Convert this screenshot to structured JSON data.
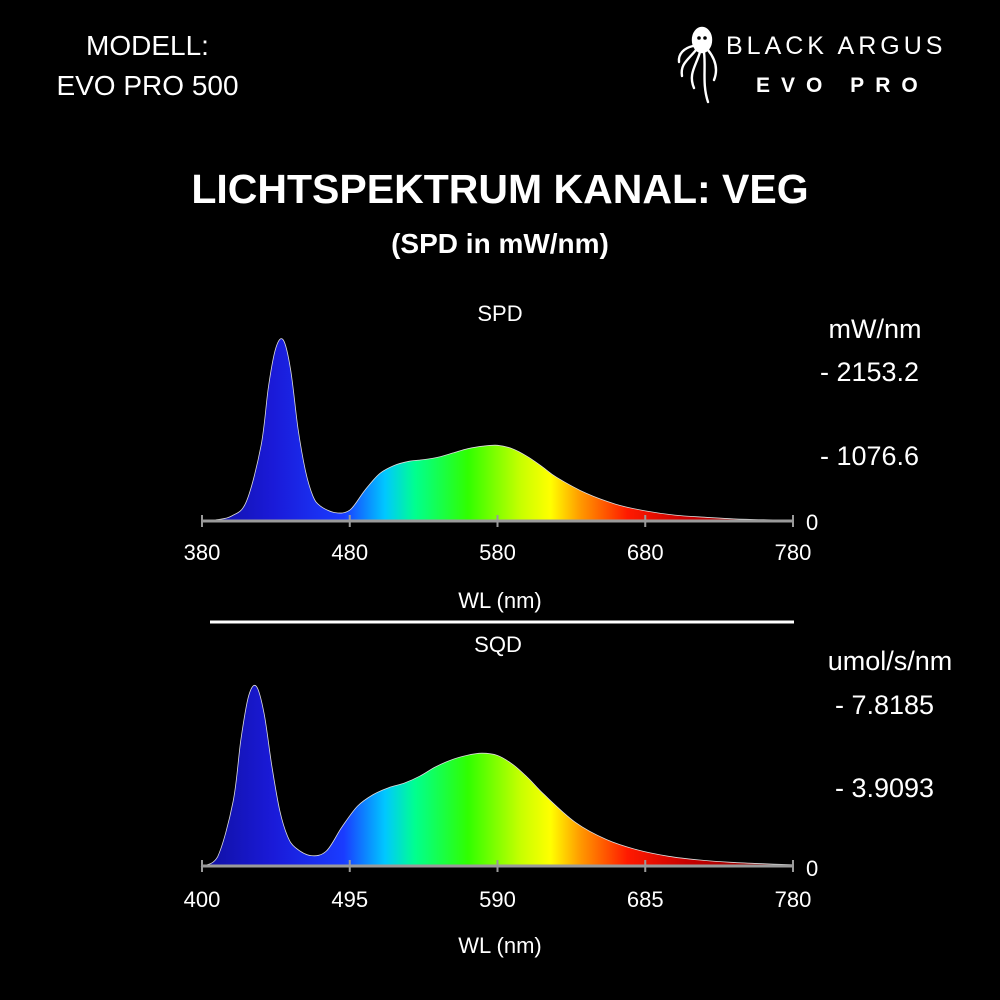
{
  "model": {
    "label": "MODELL:",
    "value": "EVO PRO 500"
  },
  "brand": {
    "name": "BLACK ARGUS",
    "sub": "EVO PRO",
    "logo_icon": "octopus-icon"
  },
  "title": "LICHTSPEKTRUM KANAL: VEG",
  "subtitle": "(SPD in mW/nm)",
  "chart_data": [
    {
      "type": "area",
      "title": "SPD",
      "xlabel": "WL (nm)",
      "ylabel": "mW/nm",
      "xlim": [
        380,
        780
      ],
      "ylim": [
        0,
        2153.2
      ],
      "xticks": [
        "380",
        "480",
        "580",
        "680",
        "780"
      ],
      "yticks": [
        "0",
        "- 1076.6",
        "- 2153.2"
      ],
      "x": [
        380,
        390,
        400,
        410,
        420,
        425,
        430,
        435,
        440,
        445,
        450,
        455,
        460,
        470,
        480,
        490,
        500,
        510,
        520,
        530,
        540,
        550,
        560,
        570,
        580,
        590,
        600,
        610,
        620,
        640,
        660,
        680,
        700,
        720,
        740,
        760,
        780
      ],
      "values": [
        0,
        15,
        60,
        230,
        900,
        1600,
        2060,
        2153,
        1800,
        1100,
        600,
        300,
        180,
        100,
        130,
        360,
        560,
        660,
        710,
        730,
        760,
        810,
        860,
        890,
        900,
        860,
        770,
        650,
        520,
        330,
        200,
        120,
        70,
        45,
        25,
        15,
        8
      ]
    },
    {
      "type": "area",
      "title": "SQD",
      "xlabel": "WL (nm)",
      "ylabel": "umol/s/nm",
      "xlim": [
        400,
        780
      ],
      "ylim": [
        0,
        7.8185
      ],
      "xticks": [
        "400",
        "495",
        "590",
        "685",
        "780"
      ],
      "yticks": [
        "0",
        "- 3.9093",
        "- 7.8185"
      ],
      "x": [
        400,
        410,
        420,
        425,
        430,
        435,
        440,
        445,
        450,
        455,
        460,
        470,
        480,
        490,
        500,
        510,
        520,
        530,
        540,
        550,
        560,
        570,
        580,
        590,
        600,
        610,
        620,
        640,
        660,
        680,
        700,
        720,
        740,
        760,
        780
      ],
      "values": [
        0,
        0.4,
        2.8,
        5.5,
        7.4,
        7.8,
        6.6,
        4.3,
        2.4,
        1.3,
        0.8,
        0.45,
        0.65,
        1.7,
        2.6,
        3.1,
        3.4,
        3.6,
        3.9,
        4.3,
        4.6,
        4.8,
        4.9,
        4.8,
        4.4,
        3.8,
        3.1,
        1.9,
        1.15,
        0.7,
        0.42,
        0.26,
        0.16,
        0.1,
        0.05
      ]
    }
  ]
}
